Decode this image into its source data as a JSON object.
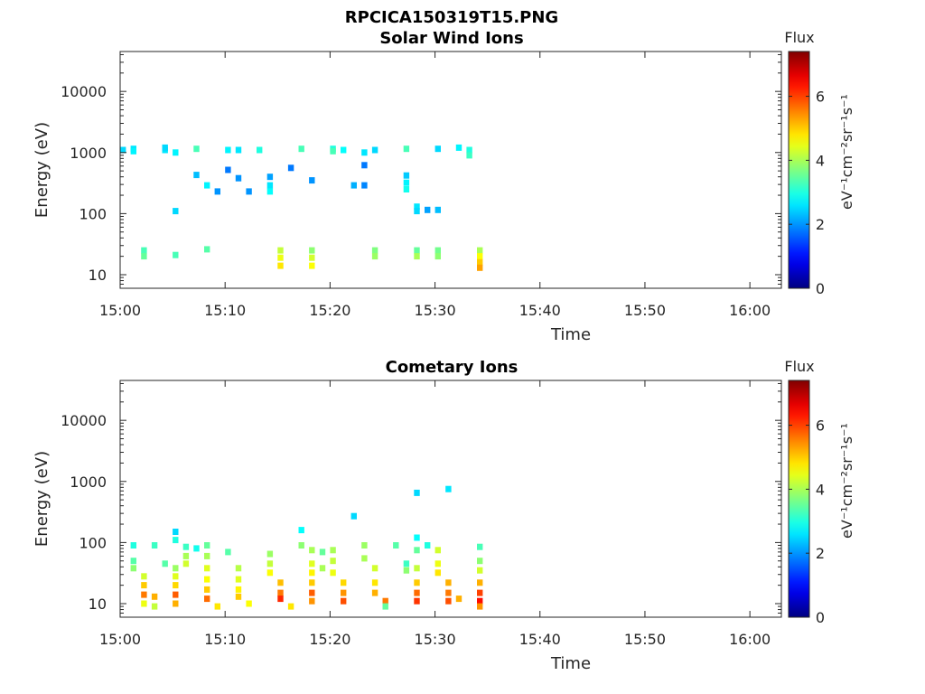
{
  "figure": {
    "title": "RPCICA150319T15.PNG"
  },
  "chart_data": [
    {
      "type": "heatmap",
      "title": "Solar Wind Ions",
      "xlabel": "Time",
      "ylabel": "Energy (eV)",
      "x_ticks": [
        "15:00",
        "15:10",
        "15:20",
        "15:30",
        "15:40",
        "15:50",
        "16:00"
      ],
      "xlim": [
        "15:00",
        "16:03"
      ],
      "y_scale": "log",
      "y_ticks": [
        10,
        100,
        1000,
        10000
      ],
      "ylim": [
        6,
        45000
      ],
      "colorbar": {
        "title": "Flux",
        "label": "eV⁻¹cm⁻²sr⁻¹s⁻¹",
        "ticks": [
          0,
          2,
          4,
          6
        ],
        "range": [
          0,
          7.4
        ],
        "colormap": "jet"
      },
      "cells": [
        {
          "t": "15:00",
          "e": 1100,
          "v": 2.5
        },
        {
          "t": "15:01",
          "e": 1150,
          "v": 2.6
        },
        {
          "t": "15:01",
          "e": 1050,
          "v": 2.7
        },
        {
          "t": "15:02",
          "e": 25,
          "v": 3.3
        },
        {
          "t": "15:02",
          "e": 20,
          "v": 3.5
        },
        {
          "t": "15:04",
          "e": 1100,
          "v": 2.6
        },
        {
          "t": "15:04",
          "e": 1200,
          "v": 2.5
        },
        {
          "t": "15:05",
          "e": 1000,
          "v": 2.7
        },
        {
          "t": "15:05",
          "e": 110,
          "v": 2.5
        },
        {
          "t": "15:05",
          "e": 21,
          "v": 3.3
        },
        {
          "t": "15:07",
          "e": 1150,
          "v": 3.3
        },
        {
          "t": "15:07",
          "e": 430,
          "v": 2.3
        },
        {
          "t": "15:08",
          "e": 290,
          "v": 2.7
        },
        {
          "t": "15:08",
          "e": 26,
          "v": 3.4
        },
        {
          "t": "15:09",
          "e": 230,
          "v": 2.0
        },
        {
          "t": "15:10",
          "e": 520,
          "v": 1.8
        },
        {
          "t": "15:10",
          "e": 1100,
          "v": 2.7
        },
        {
          "t": "15:11",
          "e": 1100,
          "v": 2.6
        },
        {
          "t": "15:11",
          "e": 380,
          "v": 2.0
        },
        {
          "t": "15:12",
          "e": 230,
          "v": 2.0
        },
        {
          "t": "15:13",
          "e": 1100,
          "v": 3.0
        },
        {
          "t": "15:14",
          "e": 400,
          "v": 2.1
        },
        {
          "t": "15:14",
          "e": 290,
          "v": 2.6
        },
        {
          "t": "15:14",
          "e": 230,
          "v": 2.8
        },
        {
          "t": "15:15",
          "e": 25,
          "v": 4.2
        },
        {
          "t": "15:15",
          "e": 19,
          "v": 4.5
        },
        {
          "t": "15:15",
          "e": 14,
          "v": 4.8
        },
        {
          "t": "15:16",
          "e": 560,
          "v": 1.8
        },
        {
          "t": "15:17",
          "e": 1150,
          "v": 3.3
        },
        {
          "t": "15:18",
          "e": 350,
          "v": 2.0
        },
        {
          "t": "15:18",
          "e": 25,
          "v": 3.8
        },
        {
          "t": "15:18",
          "e": 19,
          "v": 4.3
        },
        {
          "t": "15:18",
          "e": 14,
          "v": 4.6
        },
        {
          "t": "15:20",
          "e": 1150,
          "v": 3.0
        },
        {
          "t": "15:20",
          "e": 1050,
          "v": 3.3
        },
        {
          "t": "15:21",
          "e": 1100,
          "v": 2.8
        },
        {
          "t": "15:22",
          "e": 290,
          "v": 2.2
        },
        {
          "t": "15:23",
          "e": 620,
          "v": 1.8
        },
        {
          "t": "15:23",
          "e": 290,
          "v": 1.9
        },
        {
          "t": "15:23",
          "e": 1000,
          "v": 2.6
        },
        {
          "t": "15:24",
          "e": 1100,
          "v": 2.5
        },
        {
          "t": "15:24",
          "e": 25,
          "v": 3.7
        },
        {
          "t": "15:24",
          "e": 20,
          "v": 3.9
        },
        {
          "t": "15:27",
          "e": 1150,
          "v": 3.3
        },
        {
          "t": "15:27",
          "e": 420,
          "v": 2.4
        },
        {
          "t": "15:27",
          "e": 320,
          "v": 2.7
        },
        {
          "t": "15:27",
          "e": 250,
          "v": 2.9
        },
        {
          "t": "15:28",
          "e": 25,
          "v": 3.5
        },
        {
          "t": "15:28",
          "e": 20,
          "v": 4.0
        },
        {
          "t": "15:28",
          "e": 130,
          "v": 2.6
        },
        {
          "t": "15:28",
          "e": 110,
          "v": 2.5
        },
        {
          "t": "15:29",
          "e": 115,
          "v": 2.1
        },
        {
          "t": "15:30",
          "e": 1150,
          "v": 2.5
        },
        {
          "t": "15:30",
          "e": 115,
          "v": 2.3
        },
        {
          "t": "15:30",
          "e": 25,
          "v": 3.6
        },
        {
          "t": "15:30",
          "e": 20,
          "v": 3.8
        },
        {
          "t": "15:32",
          "e": 1200,
          "v": 2.7
        },
        {
          "t": "15:33",
          "e": 1100,
          "v": 3.0
        },
        {
          "t": "15:33",
          "e": 900,
          "v": 3.2
        },
        {
          "t": "15:34",
          "e": 25,
          "v": 4.0
        },
        {
          "t": "15:34",
          "e": 20,
          "v": 4.6
        },
        {
          "t": "15:34",
          "e": 16,
          "v": 5.0
        },
        {
          "t": "15:34",
          "e": 13,
          "v": 5.3
        }
      ]
    },
    {
      "type": "heatmap",
      "title": "Cometary Ions",
      "xlabel": "Time",
      "ylabel": "Energy (eV)",
      "x_ticks": [
        "15:00",
        "15:10",
        "15:20",
        "15:30",
        "15:40",
        "15:50",
        "16:00"
      ],
      "xlim": [
        "15:00",
        "16:03"
      ],
      "y_scale": "log",
      "y_ticks": [
        10,
        100,
        1000,
        10000
      ],
      "ylim": [
        6,
        45000
      ],
      "colorbar": {
        "title": "Flux",
        "label": "eV⁻¹cm⁻²sr⁻¹s⁻¹",
        "ticks": [
          0,
          2,
          4,
          6
        ],
        "range": [
          0,
          7.4
        ],
        "colormap": "jet"
      },
      "cells": [
        {
          "t": "15:01",
          "e": 90,
          "v": 3.0
        },
        {
          "t": "15:01",
          "e": 50,
          "v": 3.4
        },
        {
          "t": "15:01",
          "e": 38,
          "v": 3.8
        },
        {
          "t": "15:02",
          "e": 28,
          "v": 4.3
        },
        {
          "t": "15:02",
          "e": 20,
          "v": 5.0
        },
        {
          "t": "15:02",
          "e": 14,
          "v": 5.6
        },
        {
          "t": "15:02",
          "e": 10,
          "v": 4.5
        },
        {
          "t": "15:03",
          "e": 90,
          "v": 3.2
        },
        {
          "t": "15:03",
          "e": 13,
          "v": 5.2
        },
        {
          "t": "15:03",
          "e": 9,
          "v": 4.2
        },
        {
          "t": "15:04",
          "e": 45,
          "v": 3.4
        },
        {
          "t": "15:05",
          "e": 38,
          "v": 3.9
        },
        {
          "t": "15:05",
          "e": 28,
          "v": 4.4
        },
        {
          "t": "15:05",
          "e": 20,
          "v": 4.9
        },
        {
          "t": "15:05",
          "e": 14,
          "v": 5.8
        },
        {
          "t": "15:05",
          "e": 10,
          "v": 5.2
        },
        {
          "t": "15:05",
          "e": 150,
          "v": 2.5
        },
        {
          "t": "15:05",
          "e": 110,
          "v": 3.0
        },
        {
          "t": "15:06",
          "e": 85,
          "v": 3.2
        },
        {
          "t": "15:06",
          "e": 60,
          "v": 4.0
        },
        {
          "t": "15:06",
          "e": 45,
          "v": 4.3
        },
        {
          "t": "15:07",
          "e": 80,
          "v": 2.9
        },
        {
          "t": "15:08",
          "e": 90,
          "v": 3.5
        },
        {
          "t": "15:08",
          "e": 60,
          "v": 4.0
        },
        {
          "t": "15:08",
          "e": 38,
          "v": 4.4
        },
        {
          "t": "15:08",
          "e": 25,
          "v": 4.6
        },
        {
          "t": "15:08",
          "e": 17,
          "v": 5.0
        },
        {
          "t": "15:08",
          "e": 12,
          "v": 5.7
        },
        {
          "t": "15:09",
          "e": 9,
          "v": 4.8
        },
        {
          "t": "15:10",
          "e": 70,
          "v": 3.4
        },
        {
          "t": "15:11",
          "e": 38,
          "v": 4.1
        },
        {
          "t": "15:11",
          "e": 25,
          "v": 4.4
        },
        {
          "t": "15:11",
          "e": 17,
          "v": 4.7
        },
        {
          "t": "15:11",
          "e": 13,
          "v": 5.0
        },
        {
          "t": "15:12",
          "e": 10,
          "v": 4.6
        },
        {
          "t": "15:14",
          "e": 65,
          "v": 3.9
        },
        {
          "t": "15:14",
          "e": 45,
          "v": 4.2
        },
        {
          "t": "15:14",
          "e": 32,
          "v": 4.6
        },
        {
          "t": "15:15",
          "e": 22,
          "v": 5.1
        },
        {
          "t": "15:15",
          "e": 15,
          "v": 5.6
        },
        {
          "t": "15:15",
          "e": 12,
          "v": 6.2
        },
        {
          "t": "15:16",
          "e": 9,
          "v": 4.8
        },
        {
          "t": "15:17",
          "e": 160,
          "v": 2.8
        },
        {
          "t": "15:17",
          "e": 90,
          "v": 3.8
        },
        {
          "t": "15:18",
          "e": 75,
          "v": 4.0
        },
        {
          "t": "15:18",
          "e": 45,
          "v": 4.4
        },
        {
          "t": "15:18",
          "e": 32,
          "v": 4.7
        },
        {
          "t": "15:18",
          "e": 22,
          "v": 5.0
        },
        {
          "t": "15:18",
          "e": 15,
          "v": 5.8
        },
        {
          "t": "15:18",
          "e": 11,
          "v": 5.4
        },
        {
          "t": "15:19",
          "e": 70,
          "v": 3.5
        },
        {
          "t": "15:19",
          "e": 38,
          "v": 4.0
        },
        {
          "t": "15:20",
          "e": 75,
          "v": 4.0
        },
        {
          "t": "15:20",
          "e": 50,
          "v": 4.2
        },
        {
          "t": "15:20",
          "e": 32,
          "v": 4.5
        },
        {
          "t": "15:21",
          "e": 22,
          "v": 4.9
        },
        {
          "t": "15:21",
          "e": 15,
          "v": 5.4
        },
        {
          "t": "15:21",
          "e": 11,
          "v": 5.9
        },
        {
          "t": "15:22",
          "e": 270,
          "v": 2.5
        },
        {
          "t": "15:23",
          "e": 90,
          "v": 3.9
        },
        {
          "t": "15:23",
          "e": 55,
          "v": 4.0
        },
        {
          "t": "15:24",
          "e": 38,
          "v": 4.3
        },
        {
          "t": "15:24",
          "e": 22,
          "v": 4.8
        },
        {
          "t": "15:24",
          "e": 15,
          "v": 5.2
        },
        {
          "t": "15:25",
          "e": 11,
          "v": 5.6
        },
        {
          "t": "15:25",
          "e": 9,
          "v": 3.5
        },
        {
          "t": "15:26",
          "e": 90,
          "v": 3.4
        },
        {
          "t": "15:27",
          "e": 45,
          "v": 3.2
        },
        {
          "t": "15:27",
          "e": 35,
          "v": 3.8
        },
        {
          "t": "15:28",
          "e": 650,
          "v": 2.5
        },
        {
          "t": "15:28",
          "e": 120,
          "v": 2.8
        },
        {
          "t": "15:28",
          "e": 75,
          "v": 3.5
        },
        {
          "t": "15:28",
          "e": 38,
          "v": 4.2
        },
        {
          "t": "15:28",
          "e": 22,
          "v": 5.0
        },
        {
          "t": "15:28",
          "e": 15,
          "v": 5.7
        },
        {
          "t": "15:28",
          "e": 11,
          "v": 6.1
        },
        {
          "t": "15:29",
          "e": 90,
          "v": 3.0
        },
        {
          "t": "15:30",
          "e": 75,
          "v": 4.3
        },
        {
          "t": "15:30",
          "e": 45,
          "v": 4.5
        },
        {
          "t": "15:30",
          "e": 32,
          "v": 4.8
        },
        {
          "t": "15:31",
          "e": 22,
          "v": 5.2
        },
        {
          "t": "15:31",
          "e": 15,
          "v": 5.6
        },
        {
          "t": "15:31",
          "e": 11,
          "v": 5.9
        },
        {
          "t": "15:31",
          "e": 750,
          "v": 2.6
        },
        {
          "t": "15:32",
          "e": 12,
          "v": 5.2
        },
        {
          "t": "15:34",
          "e": 85,
          "v": 3.3
        },
        {
          "t": "15:34",
          "e": 50,
          "v": 3.8
        },
        {
          "t": "15:34",
          "e": 35,
          "v": 4.3
        },
        {
          "t": "15:34",
          "e": 22,
          "v": 5.2
        },
        {
          "t": "15:34",
          "e": 15,
          "v": 6.0
        },
        {
          "t": "15:34",
          "e": 11,
          "v": 6.4
        },
        {
          "t": "15:34",
          "e": 9,
          "v": 5.4
        }
      ]
    }
  ]
}
